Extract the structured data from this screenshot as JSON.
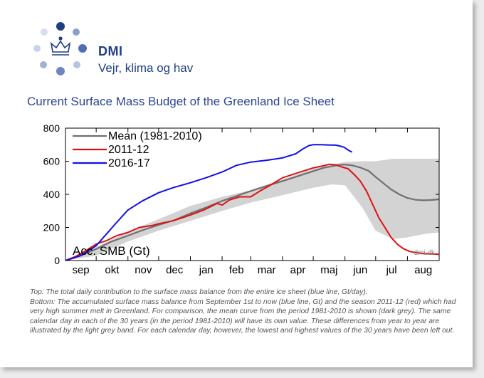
{
  "brand": {
    "name": "DMI",
    "tagline": "Vejr, klima og hav"
  },
  "colors": {
    "brand": "#1f3e84",
    "title": "#2b4593",
    "mean_line": "#707070",
    "season_2011": "#e01010",
    "season_2016": "#1010e8",
    "band": "#d3d3d3"
  },
  "page_title": "Current Surface Mass Budget of the Greenland Ice Sheet",
  "caption": {
    "top": "Top: The total daily contribution to the surface mass balance from the entire ice sheet (blue line, Gt/day).",
    "bottom": "Bottom: The accumulated surface mass balance from September 1st to now (blue line, Gt) and the season 2011-12 (red) which had very high summer melt in Greenland. For comparison, the mean curve from the period 1981-2010 is shown (dark grey). The same calendar day in each of the 30 years (in the period 1981-2010) will have its own value. These differences from year to year are illustrated by the light grey band. For each calendar day, however, the lowest and highest values of the 30 years have been left out."
  },
  "chart_data": {
    "type": "line",
    "title": "",
    "ylabel": "",
    "annotation": "Acc. SMB (Gt)",
    "watermark": "dmi.dk",
    "xlabel": "",
    "ylim": [
      0,
      800
    ],
    "xlim": [
      0,
      365
    ],
    "grid": false,
    "legend_position": "top-left",
    "yticks": [
      0,
      200,
      400,
      600,
      800
    ],
    "month_labels": [
      "sep",
      "okt",
      "nov",
      "dec",
      "jan",
      "feb",
      "mar",
      "apr",
      "maj",
      "jun",
      "jul",
      "aug"
    ],
    "month_starts": [
      0,
      30,
      61,
      91,
      122,
      153,
      181,
      212,
      242,
      273,
      303,
      334
    ],
    "band": {
      "x": [
        0,
        30,
        61,
        91,
        122,
        153,
        181,
        212,
        242,
        260,
        273,
        290,
        303,
        320,
        334,
        350,
        365
      ],
      "low": [
        0,
        30,
        115,
        180,
        240,
        300,
        350,
        395,
        440,
        460,
        455,
        320,
        180,
        130,
        140,
        160,
        170
      ],
      "high": [
        0,
        80,
        175,
        250,
        330,
        385,
        425,
        490,
        555,
        580,
        595,
        600,
        600,
        615,
        615,
        615,
        615
      ]
    },
    "series": [
      {
        "name": "Mean (1981-2010)",
        "color": "#707070",
        "x": [
          0,
          15,
          30,
          45,
          61,
          76,
          91,
          107,
          122,
          137,
          153,
          167,
          181,
          196,
          212,
          227,
          242,
          252,
          262,
          268,
          273,
          280,
          288,
          296,
          303,
          310,
          318,
          326,
          334,
          342,
          350,
          358,
          365
        ],
        "y": [
          0,
          30,
          70,
          115,
          150,
          185,
          215,
          245,
          285,
          320,
          360,
          390,
          420,
          450,
          480,
          510,
          540,
          560,
          572,
          578,
          580,
          575,
          562,
          542,
          505,
          470,
          430,
          400,
          378,
          367,
          364,
          366,
          370
        ]
      },
      {
        "name": "2011-12",
        "color": "#e01010",
        "x": [
          0,
          10,
          20,
          30,
          40,
          50,
          61,
          72,
          85,
          91,
          105,
          122,
          135,
          148,
          153,
          160,
          170,
          181,
          190,
          200,
          212,
          222,
          232,
          242,
          250,
          258,
          264,
          270,
          276,
          282,
          288,
          294,
          300,
          306,
          312,
          318,
          324,
          330,
          336,
          342,
          350,
          358,
          365
        ],
        "y": [
          0,
          25,
          60,
          100,
          120,
          150,
          170,
          200,
          212,
          222,
          240,
          275,
          305,
          345,
          335,
          365,
          385,
          385,
          420,
          455,
          500,
          520,
          540,
          560,
          570,
          582,
          578,
          565,
          555,
          520,
          480,
          420,
          340,
          260,
          200,
          140,
          100,
          72,
          55,
          48,
          42,
          40,
          38
        ]
      },
      {
        "name": "2016-17",
        "color": "#1010e8",
        "x": [
          0,
          15,
          30,
          40,
          50,
          61,
          75,
          91,
          105,
          122,
          137,
          153,
          167,
          181,
          196,
          212,
          225,
          232,
          238,
          242,
          250,
          258,
          264,
          268,
          272,
          276,
          280
        ],
        "y": [
          0,
          30,
          90,
          160,
          230,
          305,
          360,
          410,
          440,
          470,
          500,
          535,
          575,
          595,
          605,
          620,
          645,
          675,
          695,
          700,
          700,
          698,
          697,
          692,
          685,
          668,
          655
        ]
      }
    ]
  }
}
